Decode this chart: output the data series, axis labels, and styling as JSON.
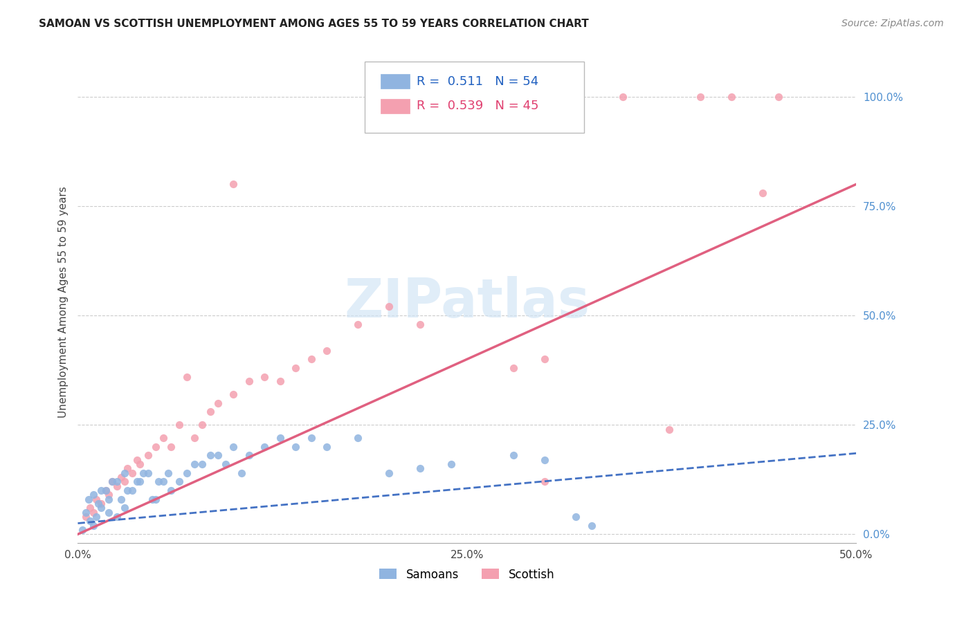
{
  "title": "SAMOAN VS SCOTTISH UNEMPLOYMENT AMONG AGES 55 TO 59 YEARS CORRELATION CHART",
  "source": "Source: ZipAtlas.com",
  "ylabel": "Unemployment Among Ages 55 to 59 years",
  "xlim": [
    0.0,
    0.5
  ],
  "ylim": [
    -0.02,
    1.08
  ],
  "ytick_labels": [
    "0.0%",
    "25.0%",
    "50.0%",
    "75.0%",
    "100.0%"
  ],
  "ytick_values": [
    0.0,
    0.25,
    0.5,
    0.75,
    1.0
  ],
  "xtick_values": [
    0.0,
    0.05,
    0.1,
    0.15,
    0.2,
    0.25,
    0.3,
    0.35,
    0.4,
    0.45,
    0.5
  ],
  "xtick_labels": [
    "0.0%",
    "",
    "",
    "",
    "",
    "25.0%",
    "",
    "",
    "",
    "",
    "50.0%"
  ],
  "samoans_R": 0.511,
  "samoans_N": 54,
  "scottish_R": 0.539,
  "scottish_N": 45,
  "samoan_color": "#90b4e0",
  "scottish_color": "#f4a0b0",
  "samoan_line_color": "#4472c4",
  "scottish_line_color": "#e06080",
  "samoan_x": [
    0.003,
    0.005,
    0.007,
    0.008,
    0.01,
    0.01,
    0.012,
    0.013,
    0.015,
    0.015,
    0.018,
    0.02,
    0.02,
    0.022,
    0.025,
    0.025,
    0.028,
    0.03,
    0.03,
    0.032,
    0.035,
    0.038,
    0.04,
    0.042,
    0.045,
    0.048,
    0.05,
    0.052,
    0.055,
    0.058,
    0.06,
    0.065,
    0.07,
    0.075,
    0.08,
    0.085,
    0.09,
    0.095,
    0.1,
    0.105,
    0.11,
    0.12,
    0.13,
    0.14,
    0.15,
    0.16,
    0.18,
    0.2,
    0.22,
    0.24,
    0.28,
    0.3,
    0.32,
    0.33
  ],
  "samoan_y": [
    0.01,
    0.05,
    0.08,
    0.03,
    0.02,
    0.09,
    0.04,
    0.07,
    0.06,
    0.1,
    0.1,
    0.08,
    0.05,
    0.12,
    0.12,
    0.04,
    0.08,
    0.14,
    0.06,
    0.1,
    0.1,
    0.12,
    0.12,
    0.14,
    0.14,
    0.08,
    0.08,
    0.12,
    0.12,
    0.14,
    0.1,
    0.12,
    0.14,
    0.16,
    0.16,
    0.18,
    0.18,
    0.16,
    0.2,
    0.14,
    0.18,
    0.2,
    0.22,
    0.2,
    0.22,
    0.2,
    0.22,
    0.14,
    0.15,
    0.16,
    0.18,
    0.17,
    0.04,
    0.02
  ],
  "scottish_x": [
    0.005,
    0.008,
    0.01,
    0.012,
    0.015,
    0.018,
    0.02,
    0.022,
    0.025,
    0.028,
    0.03,
    0.032,
    0.035,
    0.038,
    0.04,
    0.045,
    0.05,
    0.055,
    0.06,
    0.065,
    0.07,
    0.075,
    0.08,
    0.085,
    0.09,
    0.1,
    0.11,
    0.12,
    0.13,
    0.14,
    0.15,
    0.16,
    0.18,
    0.2,
    0.22,
    0.28,
    0.3,
    0.35,
    0.38,
    0.4,
    0.42,
    0.44,
    0.45,
    0.1,
    0.3
  ],
  "scottish_y": [
    0.04,
    0.06,
    0.05,
    0.08,
    0.07,
    0.1,
    0.09,
    0.12,
    0.11,
    0.13,
    0.12,
    0.15,
    0.14,
    0.17,
    0.16,
    0.18,
    0.2,
    0.22,
    0.2,
    0.25,
    0.36,
    0.22,
    0.25,
    0.28,
    0.3,
    0.32,
    0.35,
    0.36,
    0.35,
    0.38,
    0.4,
    0.42,
    0.48,
    0.52,
    0.48,
    0.38,
    0.4,
    1.0,
    0.24,
    1.0,
    1.0,
    0.78,
    1.0,
    0.8,
    0.12
  ],
  "samoan_line_x": [
    0.0,
    0.5
  ],
  "samoan_line_y": [
    0.025,
    0.185
  ],
  "scottish_line_x": [
    0.0,
    0.5
  ],
  "scottish_line_y": [
    0.0,
    0.8
  ]
}
